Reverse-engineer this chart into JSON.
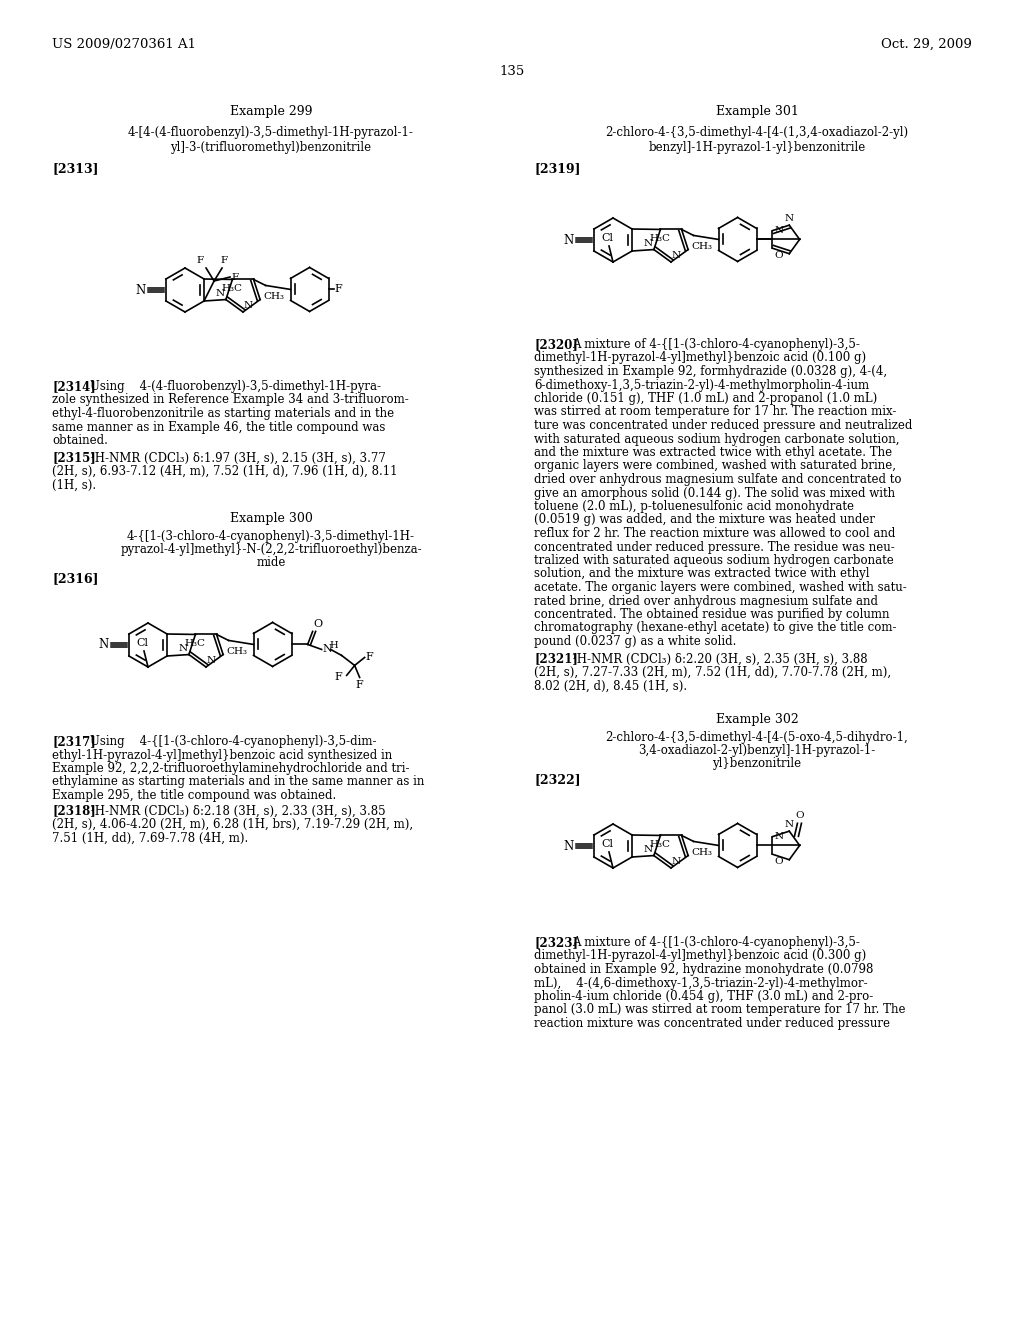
{
  "bg": "#ffffff",
  "header_left": "US 2009/0270361 A1",
  "header_right": "Oct. 29, 2009",
  "page_num": "135",
  "ex299_title": "Example 299",
  "ex299_name1": "4-[4-(4-fluorobenzyl)-3,5-dimethyl-1H-pyrazol-1-",
  "ex299_name2": "yl]-3-(trifluoromethyl)benzonitrile",
  "ref2313": "[2313]",
  "p2314_tag": "[2314]",
  "p2314": "Using    4-(4-fluorobenzyl)-3,5-dimethyl-1H-pyra-\nzole synthesized in Reference Example 34 and 3-trifluorom-\nethyl-4-fluorobenzonitrile as starting materials and in the\nsame manner as in Example 46, the title compound was\nobtained.",
  "p2315_tag": "[2315]",
  "p2315": "¹H-NMR (CDCl₃) δ:1.97 (3H, s), 2.15 (3H, s), 3.77\n(2H, s), 6.93-7.12 (4H, m), 7.52 (1H, d), 7.96 (1H, d), 8.11\n(1H, s).",
  "ex300_title": "Example 300",
  "ex300_name1": "4-{[1-(3-chloro-4-cyanophenyl)-3,5-dimethyl-1H-",
  "ex300_name2": "pyrazol-4-yl]methyl}-N-(2,2,2-trifluoroethyl)benza-",
  "ex300_name3": "mide",
  "ref2316": "[2316]",
  "p2317_tag": "[2317]",
  "p2317": "Using    4-{[1-(3-chloro-4-cyanophenyl)-3,5-dim-\nethyl-1H-pyrazol-4-yl]methyl}benzoic acid synthesized in\nExample 92, 2,2,2-trifluoroethylaminehydrochloride and tri-\nethylamine as starting materials and in the same manner as in\nExample 295, the title compound was obtained.",
  "p2318_tag": "[2318]",
  "p2318": "¹H-NMR (CDCl₃) δ:2.18 (3H, s), 2.33 (3H, s), 3.85\n(2H, s), 4.06-4.20 (2H, m), 6.28 (1H, brs), 7.19-7.29 (2H, m),\n7.51 (1H, dd), 7.69-7.78 (4H, m).",
  "ex301_title": "Example 301",
  "ex301_name1": "2-chloro-4-{3,5-dimethyl-4-[4-(1,3,4-oxadiazol-2-yl)",
  "ex301_name2": "benzyl]-1H-pyrazol-1-yl}benzonitrile",
  "ref2319": "[2319]",
  "p2320_tag": "[2320]",
  "p2320": "A mixture of 4-{[1-(3-chloro-4-cyanophenyl)-3,5-\ndimethyl-1H-pyrazol-4-yl]methyl}benzoic acid (0.100 g)\nsynthesized in Example 92, formhydrazide (0.0328 g), 4-(4,\n6-dimethoxy-1,3,5-triazin-2-yl)-4-methylmorpholin-4-ium\nchloride (0.151 g), THF (1.0 mL) and 2-propanol (1.0 mL)\nwas stirred at room temperature for 17 hr. The reaction mix-\nture was concentrated under reduced pressure and neutralized\nwith saturated aqueous sodium hydrogen carbonate solution,\nand the mixture was extracted twice with ethyl acetate. The\norganic layers were combined, washed with saturated brine,\ndried over anhydrous magnesium sulfate and concentrated to\ngive an amorphous solid (0.144 g). The solid was mixed with\ntoluene (2.0 mL), p-toluenesulfonic acid monohydrate\n(0.0519 g) was added, and the mixture was heated under\nreflux for 2 hr. The reaction mixture was allowed to cool and\nconcentrated under reduced pressure. The residue was neu-\ntralized with saturated aqueous sodium hydrogen carbonate\nsolution, and the mixture was extracted twice with ethyl\nacetate. The organic layers were combined, washed with satu-\nrated brine, dried over anhydrous magnesium sulfate and\nconcentrated. The obtained residue was purified by column\nchromatography (hexane-ethyl acetate) to give the title com-\npound (0.0237 g) as a white solid.",
  "p2321_tag": "[2321]",
  "p2321": "¹H-NMR (CDCl₃) δ:2.20 (3H, s), 2.35 (3H, s), 3.88\n(2H, s), 7.27-7.33 (2H, m), 7.52 (1H, dd), 7.70-7.78 (2H, m),\n8.02 (2H, d), 8.45 (1H, s).",
  "ex302_title": "Example 302",
  "ex302_name1": "2-chloro-4-{3,5-dimethyl-4-[4-(5-oxo-4,5-dihydro-1,",
  "ex302_name2": "3,4-oxadiazol-2-yl)benzyl]-1H-pyrazol-1-",
  "ex302_name3": "yl}benzonitrile",
  "ref2322": "[2322]",
  "p2323_tag": "[2323]",
  "p2323": "A mixture of 4-{[1-(3-chloro-4-cyanophenyl)-3,5-\ndimethyl-1H-pyrazol-4-yl]methyl}benzoic acid (0.300 g)\nobtained in Example 92, hydrazine monohydrate (0.0798\nmL),    4-(4,6-dimethoxy-1,3,5-triazin-2-yl)-4-methylmor-\npholin-4-ium chloride (0.454 g), THF (3.0 mL) and 2-pro-\npanol (3.0 mL) was stirred at room temperature for 17 hr. The\nreaction mixture was concentrated under reduced pressure"
}
